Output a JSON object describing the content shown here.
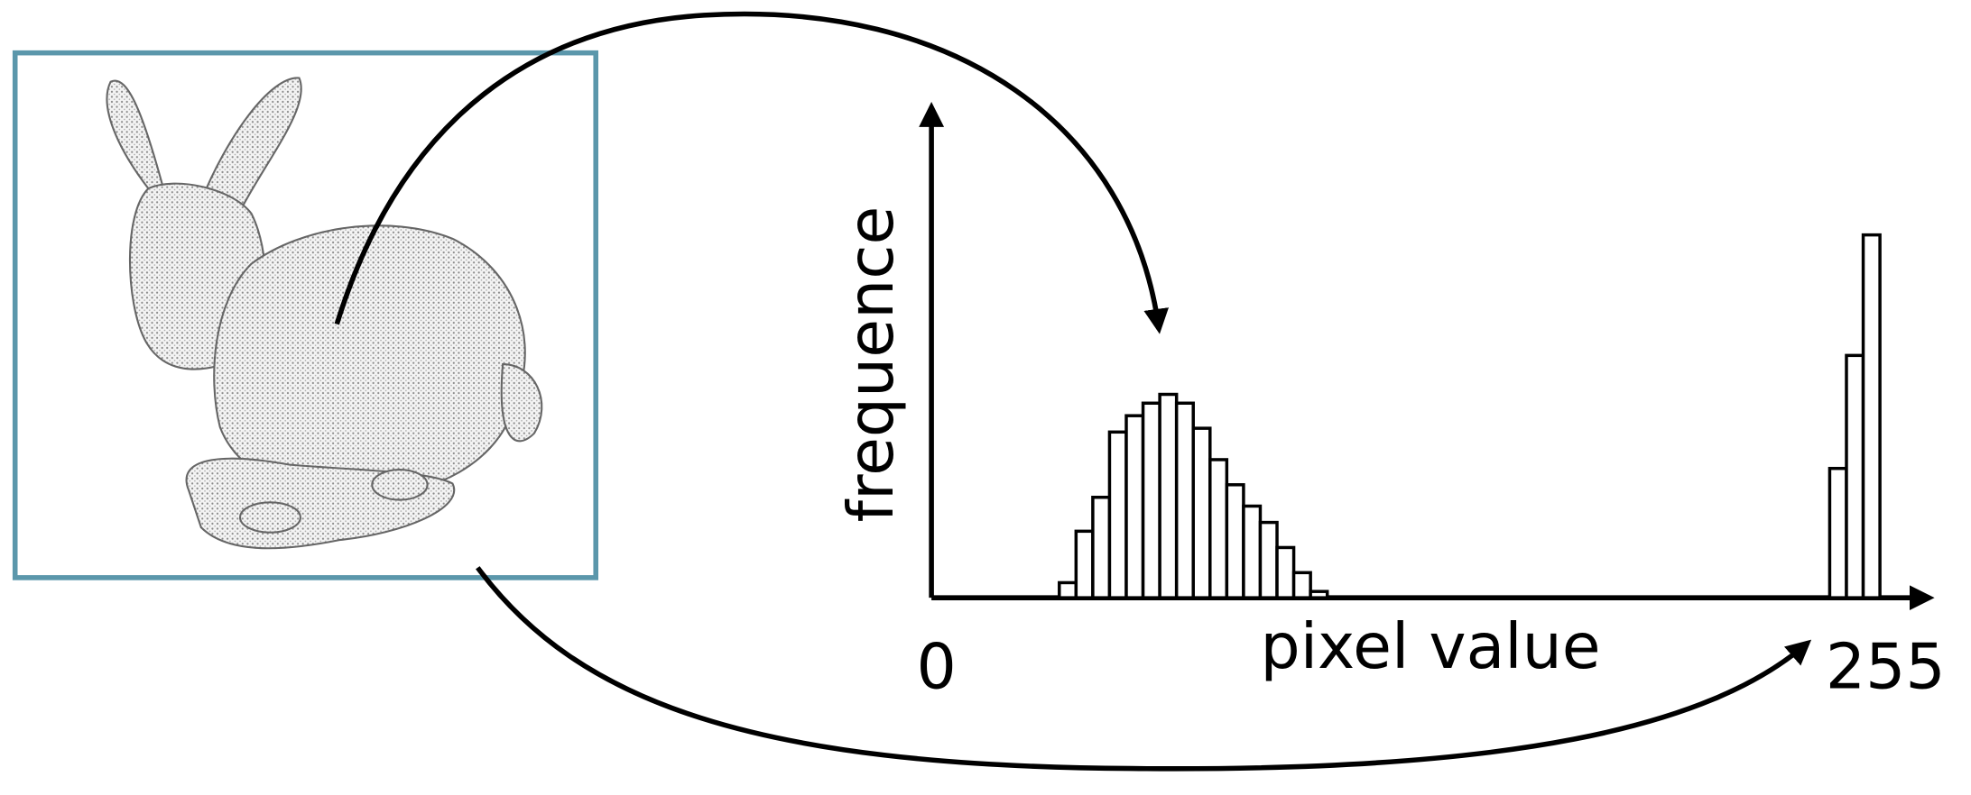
{
  "chart_data": {
    "type": "histogram",
    "xlabel": "pixel value",
    "ylabel": "frequence",
    "xlim": [
      0,
      255
    ],
    "xticks": [
      0,
      255
    ],
    "ylim": [
      0,
      400
    ],
    "bins": [
      33,
      37.5,
      42,
      46.5,
      51,
      55.5,
      60,
      64.5,
      69,
      73.5,
      78,
      82.5,
      87,
      91.5,
      96,
      100.5,
      105,
      109.5,
      114,
      118.5,
      123,
      127.5,
      132,
      136.5,
      141,
      145.5,
      150,
      154.5,
      159,
      163.5,
      168,
      172.5,
      177,
      181.5,
      186,
      190.5,
      195,
      199.5,
      204,
      208.5,
      213,
      217.5,
      222,
      226.5,
      231,
      235.5,
      240,
      244.5,
      249,
      253.5
    ],
    "values": [
      12,
      53,
      80,
      132,
      145,
      155,
      162,
      155,
      135,
      110,
      90,
      73,
      60,
      40,
      20,
      5,
      0,
      0,
      0,
      0,
      0,
      0,
      0,
      0,
      0,
      0,
      0,
      0,
      0,
      0,
      0,
      0,
      0,
      0,
      0,
      0,
      0,
      0,
      0,
      0,
      0,
      0,
      0,
      0,
      0,
      0,
      103,
      193,
      289
    ],
    "color": "#ffffff"
  }
}
